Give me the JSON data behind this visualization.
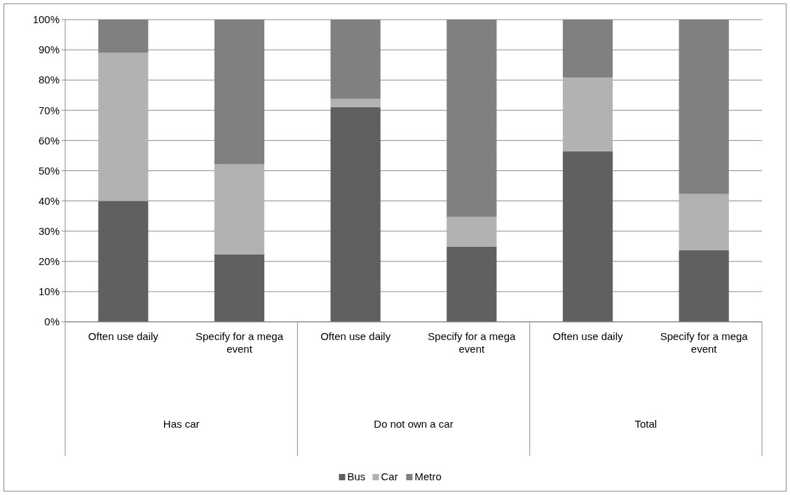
{
  "chart_data": {
    "type": "bar",
    "stacked": true,
    "categories": [
      "Often use daily",
      "Specify for a mega event",
      "Often use daily",
      "Specify for a mega event",
      "Often use daily",
      "Specify for a mega event"
    ],
    "series": [
      {
        "name": "Bus",
        "color": "#606060",
        "values": [
          40,
          22.3,
          71.1,
          24.9,
          56.4,
          23.7
        ]
      },
      {
        "name": "Car",
        "color": "#b2b2b2",
        "values": [
          49,
          29.9,
          2.7,
          9.8,
          24.4,
          18.6
        ]
      },
      {
        "name": "Metro",
        "color": "#808080",
        "values": [
          11,
          47.8,
          26.2,
          65.3,
          19.2,
          57.7
        ]
      }
    ],
    "annotations": [
      "Has car",
      "Do not own a car",
      "Total"
    ],
    "ylim": [
      0,
      100
    ],
    "yticks": [
      {
        "value": 0,
        "label": "0%"
      },
      {
        "value": 10,
        "label": "10%"
      },
      {
        "value": 20,
        "label": "20%"
      },
      {
        "value": 30,
        "label": "30%"
      },
      {
        "value": 40,
        "label": "40%"
      },
      {
        "value": 50,
        "label": "50%"
      },
      {
        "value": 60,
        "label": "60%"
      },
      {
        "value": 70,
        "label": "70%"
      },
      {
        "value": 80,
        "label": "80%"
      },
      {
        "value": 90,
        "label": "90%"
      },
      {
        "value": 100,
        "label": "100%"
      }
    ],
    "grid": "y",
    "legend": "bottom"
  }
}
